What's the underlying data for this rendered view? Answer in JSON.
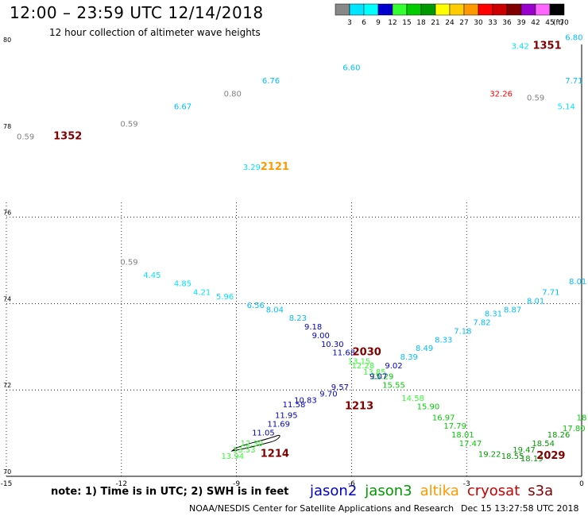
{
  "header": {
    "title": "12:00 – 23:59 UTC 12/14/2018",
    "subtitle": "12 hour collection of altimeter wave heights"
  },
  "color_scale": {
    "labels": [
      "3",
      "6",
      "9",
      "12",
      "15",
      "18",
      "21",
      "24",
      "27",
      "30",
      "33",
      "36",
      "39",
      "42",
      "45",
      "70"
    ],
    "unit": "(ft)",
    "colors": [
      "#888888",
      "#00e5ff",
      "#00ffff",
      "#0000cc",
      "#33ff33",
      "#00cc00",
      "#009900",
      "#ffff00",
      "#ffcc00",
      "#ff9900",
      "#ff0000",
      "#cc0000",
      "#800000",
      "#9900cc",
      "#ff66ff",
      "#000000"
    ]
  },
  "chart_data": {
    "type": "scatter",
    "title": "12:00 – 23:59 UTC 12/14/2018",
    "subtitle": "12 hour collection of altimeter wave heights",
    "xlim": [
      -15,
      0
    ],
    "ylim": [
      70,
      80
    ],
    "x_ticks": [
      "-15",
      "-12",
      "-9",
      "-6",
      "-3",
      "0"
    ],
    "y_ticks": [
      "70",
      "72",
      "74",
      "76",
      "78",
      "80"
    ],
    "grid": true,
    "series": [
      {
        "name": "jason2",
        "color": "#0000cc"
      },
      {
        "name": "jason3",
        "color": "#009900"
      },
      {
        "name": "altika",
        "color": "#ff9900"
      },
      {
        "name": "cryosat",
        "color": "#cc0000"
      },
      {
        "name": "s3a",
        "color": "#800000"
      }
    ],
    "points": [
      {
        "x": -14.5,
        "y": 77.8,
        "v": "0.59",
        "c": "#808080"
      },
      {
        "x": -11.8,
        "y": 78.1,
        "v": "0.59",
        "c": "#808080"
      },
      {
        "x": -10.4,
        "y": 78.5,
        "v": "6.67",
        "c": "#00bfff"
      },
      {
        "x": -9.1,
        "y": 78.8,
        "v": "0.80",
        "c": "#808080"
      },
      {
        "x": -8.1,
        "y": 79.1,
        "v": "6.76",
        "c": "#00bfff"
      },
      {
        "x": -6.0,
        "y": 79.4,
        "v": "6.60",
        "c": "#00bfff"
      },
      {
        "x": -8.6,
        "y": 77.1,
        "v": "3.29",
        "c": "#00e5ff"
      },
      {
        "x": -1.6,
        "y": 79.9,
        "v": "3.42",
        "c": "#00e5ff"
      },
      {
        "x": -0.2,
        "y": 80.1,
        "v": "6.80",
        "c": "#00bfff"
      },
      {
        "x": -0.2,
        "y": 79.1,
        "v": "7.71",
        "c": "#00bfff"
      },
      {
        "x": -2.1,
        "y": 78.8,
        "v": "32.26",
        "c": "#ff0000"
      },
      {
        "x": -1.2,
        "y": 78.7,
        "v": "0.59",
        "c": "#808080"
      },
      {
        "x": -0.4,
        "y": 78.5,
        "v": "5.14",
        "c": "#00e5ff"
      },
      {
        "x": -11.8,
        "y": 74.9,
        "v": "0.59",
        "c": "#808080"
      },
      {
        "x": -11.2,
        "y": 74.6,
        "v": "4.45",
        "c": "#00e5ff"
      },
      {
        "x": -10.4,
        "y": 74.4,
        "v": "4.85",
        "c": "#00e5ff"
      },
      {
        "x": -9.9,
        "y": 74.2,
        "v": "4.21",
        "c": "#00e5ff"
      },
      {
        "x": -9.3,
        "y": 74.1,
        "v": "5.96",
        "c": "#00e5ff"
      },
      {
        "x": -8.5,
        "y": 73.9,
        "v": "6.56",
        "c": "#00bfff"
      },
      {
        "x": -8.0,
        "y": 73.8,
        "v": "8.04",
        "c": "#00bfff"
      },
      {
        "x": -7.4,
        "y": 73.6,
        "v": "8.23",
        "c": "#00bfff"
      },
      {
        "x": -7.0,
        "y": 73.4,
        "v": "9.18",
        "c": "#0000cc"
      },
      {
        "x": -6.8,
        "y": 73.2,
        "v": "9.00",
        "c": "#0000cc"
      },
      {
        "x": -6.5,
        "y": 73.0,
        "v": "10.30",
        "c": "#0000cc"
      },
      {
        "x": -6.2,
        "y": 72.8,
        "v": "11.68",
        "c": "#0000cc"
      },
      {
        "x": -5.8,
        "y": 72.6,
        "v": "13.15",
        "c": "#33ff33"
      },
      {
        "x": -5.7,
        "y": 72.5,
        "v": "12.28",
        "c": "#33ff33"
      },
      {
        "x": -5.4,
        "y": 72.35,
        "v": "13.85",
        "c": "#33ff33"
      },
      {
        "x": -5.2,
        "y": 72.25,
        "v": "15.29",
        "c": "#00cc00"
      },
      {
        "x": -4.9,
        "y": 72.05,
        "v": "15.55",
        "c": "#00cc00"
      },
      {
        "x": -4.4,
        "y": 71.75,
        "v": "14.58",
        "c": "#33ff33"
      },
      {
        "x": -4.0,
        "y": 71.55,
        "v": "15.90",
        "c": "#00cc00"
      },
      {
        "x": -3.6,
        "y": 71.3,
        "v": "16.97",
        "c": "#00cc00"
      },
      {
        "x": -3.3,
        "y": 71.1,
        "v": "17.79",
        "c": "#00cc00"
      },
      {
        "x": -3.1,
        "y": 70.9,
        "v": "18.01",
        "c": "#00cc00"
      },
      {
        "x": -2.9,
        "y": 70.7,
        "v": "17.47",
        "c": "#00cc00"
      },
      {
        "x": -2.4,
        "y": 70.45,
        "v": "19.22",
        "c": "#009900"
      },
      {
        "x": -1.8,
        "y": 70.4,
        "v": "18.55",
        "c": "#009900"
      },
      {
        "x": -1.3,
        "y": 70.35,
        "v": "18.19",
        "c": "#009900"
      },
      {
        "x": -1.5,
        "y": 70.55,
        "v": "19.47",
        "c": "#009900"
      },
      {
        "x": -1.0,
        "y": 70.7,
        "v": "18.54",
        "c": "#009900"
      },
      {
        "x": -0.6,
        "y": 70.9,
        "v": "18.26",
        "c": "#009900"
      },
      {
        "x": -0.2,
        "y": 71.05,
        "v": "17.80",
        "c": "#00cc00"
      },
      {
        "x": 0.0,
        "y": 71.3,
        "v": "18",
        "c": "#00cc00"
      },
      {
        "x": -5.3,
        "y": 72.25,
        "v": "9.07",
        "c": "#0000cc"
      },
      {
        "x": -4.9,
        "y": 72.5,
        "v": "9.02",
        "c": "#0000cc"
      },
      {
        "x": -4.5,
        "y": 72.7,
        "v": "8.39",
        "c": "#00bfff"
      },
      {
        "x": -4.1,
        "y": 72.9,
        "v": "8.49",
        "c": "#00bfff"
      },
      {
        "x": -3.6,
        "y": 73.1,
        "v": "8.33",
        "c": "#00bfff"
      },
      {
        "x": -3.1,
        "y": 73.3,
        "v": "7.18",
        "c": "#00bfff"
      },
      {
        "x": -2.6,
        "y": 73.5,
        "v": "7.82",
        "c": "#00bfff"
      },
      {
        "x": -2.3,
        "y": 73.7,
        "v": "8.31",
        "c": "#00bfff"
      },
      {
        "x": -1.8,
        "y": 73.8,
        "v": "8.87",
        "c": "#00bfff"
      },
      {
        "x": -1.2,
        "y": 74.0,
        "v": "8.01",
        "c": "#00bfff"
      },
      {
        "x": -0.8,
        "y": 74.2,
        "v": "7.71",
        "c": "#00bfff"
      },
      {
        "x": -0.1,
        "y": 74.45,
        "v": "8.01",
        "c": "#00bfff"
      },
      {
        "x": -6.3,
        "y": 72.0,
        "v": "9.57",
        "c": "#0000cc"
      },
      {
        "x": -6.6,
        "y": 71.85,
        "v": "9.70",
        "c": "#0000cc"
      },
      {
        "x": -7.2,
        "y": 71.7,
        "v": "10.83",
        "c": "#0000cc"
      },
      {
        "x": -7.5,
        "y": 71.6,
        "v": "11.58",
        "c": "#0000cc"
      },
      {
        "x": -7.7,
        "y": 71.35,
        "v": "11.95",
        "c": "#0000cc"
      },
      {
        "x": -7.9,
        "y": 71.15,
        "v": "11.69",
        "c": "#0000cc"
      },
      {
        "x": -8.3,
        "y": 70.95,
        "v": "11.05",
        "c": "#0000cc"
      },
      {
        "x": -8.6,
        "y": 70.7,
        "v": "12.30",
        "c": "#33ff33"
      },
      {
        "x": -8.8,
        "y": 70.55,
        "v": "13.53",
        "c": "#33ff33"
      },
      {
        "x": -9.1,
        "y": 70.4,
        "v": "13.94",
        "c": "#33ff33"
      }
    ],
    "pass_labels": [
      {
        "x": -13.4,
        "y": 77.8,
        "text": "1352",
        "c": "#800000"
      },
      {
        "x": -8.0,
        "y": 77.1,
        "text": "2121",
        "c": "#ff9900"
      },
      {
        "x": -0.9,
        "y": 79.9,
        "text": "1351",
        "c": "#800000"
      },
      {
        "x": -5.6,
        "y": 72.8,
        "text": "2030",
        "c": "#800000"
      },
      {
        "x": -5.8,
        "y": 71.55,
        "text": "1213",
        "c": "#800000"
      },
      {
        "x": -8.0,
        "y": 70.45,
        "text": "1214",
        "c": "#800000"
      },
      {
        "x": -0.8,
        "y": 70.4,
        "text": "2029",
        "c": "#800000"
      }
    ]
  },
  "footer": {
    "note": "note: 1) Time is in UTC; 2) SWH is in feet",
    "legend": [
      {
        "label": "jason2",
        "color": "#0000cc"
      },
      {
        "label": "jason3",
        "color": "#009900"
      },
      {
        "label": "altika",
        "color": "#ff9900"
      },
      {
        "label": "cryosat",
        "color": "#cc0000"
      },
      {
        "label": "s3a",
        "color": "#800000"
      }
    ],
    "credit": "NOAA/NESDIS Center for Satellite Applications and Research",
    "generated": "Dec 15 13:27:58 UTC 2018"
  }
}
